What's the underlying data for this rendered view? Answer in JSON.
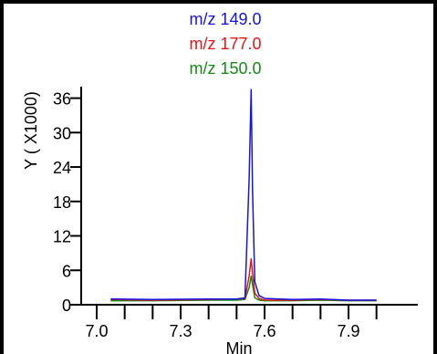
{
  "chart_data": {
    "type": "line",
    "title": "",
    "xlabel": "Min",
    "ylabel": "Y ( X1000)",
    "xlim": [
      7.0,
      8.05
    ],
    "ylim": [
      0,
      38
    ],
    "x_ticks": [
      7.0,
      7.3,
      7.6,
      7.9
    ],
    "x_tick_labels": [
      "7.0",
      "7.3",
      "7.6",
      "7.9"
    ],
    "y_ticks": [
      0,
      6,
      12,
      18,
      24,
      30,
      36
    ],
    "y_tick_labels": [
      "0",
      "6",
      "12",
      "18",
      "24",
      "30",
      "36"
    ],
    "grid": false,
    "legend_position": "top-center",
    "series": [
      {
        "name": "m/z  149.0",
        "color": "#1414e6",
        "x": [
          7.05,
          7.2,
          7.4,
          7.5,
          7.53,
          7.545,
          7.552,
          7.557,
          7.565,
          7.58,
          7.6,
          7.7,
          7.8,
          7.9,
          8.0
        ],
        "y": [
          1.0,
          0.9,
          1.0,
          1.0,
          1.2,
          22.0,
          37.5,
          20.0,
          4.0,
          1.6,
          1.1,
          0.9,
          1.0,
          0.8,
          0.8
        ]
      },
      {
        "name": "m/z  177.0",
        "color": "#e61414",
        "x": [
          7.05,
          7.2,
          7.4,
          7.5,
          7.53,
          7.545,
          7.552,
          7.557,
          7.565,
          7.58,
          7.6,
          7.7,
          7.8,
          7.9,
          8.0
        ],
        "y": [
          0.9,
          0.8,
          0.9,
          1.0,
          1.1,
          5.0,
          8.0,
          5.5,
          2.0,
          1.1,
          0.8,
          0.8,
          0.9,
          0.8,
          0.8
        ]
      },
      {
        "name": "m/z  150.0",
        "color": "#148c14",
        "x": [
          7.05,
          7.2,
          7.4,
          7.5,
          7.53,
          7.545,
          7.552,
          7.557,
          7.565,
          7.58,
          7.6,
          7.7,
          7.8,
          7.9,
          8.0
        ],
        "y": [
          0.7,
          0.7,
          0.8,
          0.8,
          0.9,
          3.0,
          5.0,
          3.5,
          1.2,
          0.8,
          0.7,
          0.7,
          0.8,
          0.7,
          0.7
        ]
      }
    ]
  }
}
